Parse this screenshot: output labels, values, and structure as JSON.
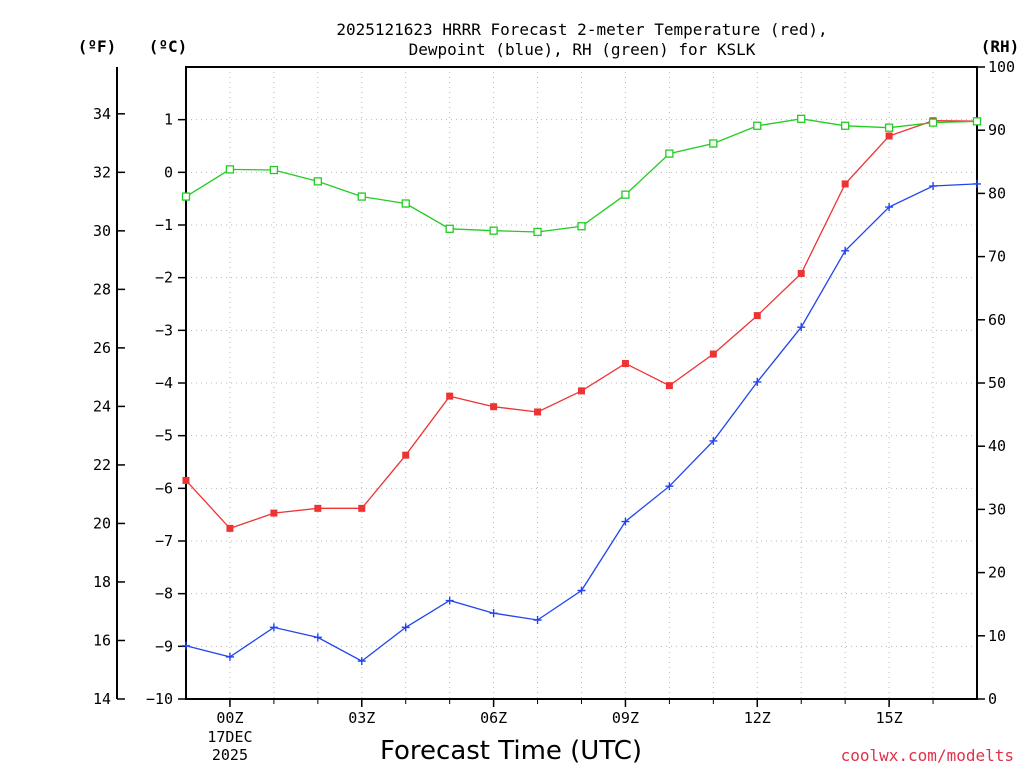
{
  "chart_data": {
    "type": "line",
    "title_line1": "2025121623 HRRR Forecast 2-meter Temperature (red),",
    "title_line2": "Dewpoint (blue), RH (green) for KSLK",
    "xlabel": "Forecast Time (UTC)",
    "credit": "coolwx.com/modelts",
    "units": {
      "fahrenheit": "(ºF)",
      "celsius": "(ºC)",
      "rh": "(RH)"
    },
    "x": [
      -1,
      0,
      1,
      2,
      3,
      4,
      5,
      6,
      7,
      8,
      9,
      10,
      11,
      12,
      13,
      14,
      15,
      16,
      17
    ],
    "xlim": [
      -1,
      17
    ],
    "x_ticks": [
      {
        "x": 0,
        "label": "00Z",
        "sub1": "17DEC",
        "sub2": "2025"
      },
      {
        "x": 3,
        "label": "03Z"
      },
      {
        "x": 6,
        "label": "06Z"
      },
      {
        "x": 9,
        "label": "09Z"
      },
      {
        "x": 12,
        "label": "12Z"
      },
      {
        "x": 15,
        "label": "15Z"
      }
    ],
    "ylim_c": [
      -10,
      2
    ],
    "yticks_c": [
      "1",
      "0",
      "−1",
      "−2",
      "−3",
      "−4",
      "−5",
      "−6",
      "−7",
      "−8",
      "−9",
      "−10"
    ],
    "yticks_c_values": [
      1,
      0,
      -1,
      -2,
      -3,
      -4,
      -5,
      -6,
      -7,
      -8,
      -9,
      -10
    ],
    "yticks_f": [
      "34",
      "32",
      "30",
      "28",
      "26",
      "24",
      "22",
      "20",
      "18",
      "16",
      "14"
    ],
    "yticks_f_values": [
      34,
      32,
      30,
      28,
      26,
      24,
      22,
      20,
      18,
      16,
      14
    ],
    "ylim_rh": [
      0,
      100
    ],
    "yticks_rh": [
      "100",
      "90",
      "80",
      "70",
      "60",
      "50",
      "40",
      "30",
      "20",
      "10",
      "0"
    ],
    "yticks_rh_values": [
      100,
      90,
      80,
      70,
      60,
      50,
      40,
      30,
      20,
      10,
      0
    ],
    "series": [
      {
        "name": "Temperature",
        "axis": "c",
        "color": "#ee3333",
        "marker": "filled-square",
        "values": [
          -5.85,
          -6.76,
          -6.47,
          -6.38,
          -6.38,
          -5.37,
          -4.25,
          -4.45,
          -4.55,
          -4.15,
          -3.63,
          -4.05,
          -3.45,
          -2.72,
          -1.92,
          -0.22,
          0.69,
          0.98,
          0.97
        ]
      },
      {
        "name": "Dewpoint",
        "axis": "c",
        "color": "#2244ee",
        "marker": "plus",
        "values": [
          -8.99,
          -9.2,
          -8.64,
          -8.83,
          -9.28,
          -8.64,
          -8.13,
          -8.37,
          -8.5,
          -7.94,
          -6.63,
          -5.96,
          -5.1,
          -3.98,
          -2.94,
          -1.49,
          -0.66,
          -0.26,
          -0.22
        ]
      },
      {
        "name": "RH",
        "axis": "rh",
        "color": "#22cc22",
        "marker": "open-square",
        "values": [
          79.5,
          83.8,
          83.7,
          81.9,
          79.5,
          78.4,
          74.4,
          74.1,
          73.9,
          74.8,
          79.8,
          86.3,
          87.9,
          90.7,
          91.8,
          90.7,
          90.4,
          91.2,
          91.4
        ]
      }
    ]
  }
}
